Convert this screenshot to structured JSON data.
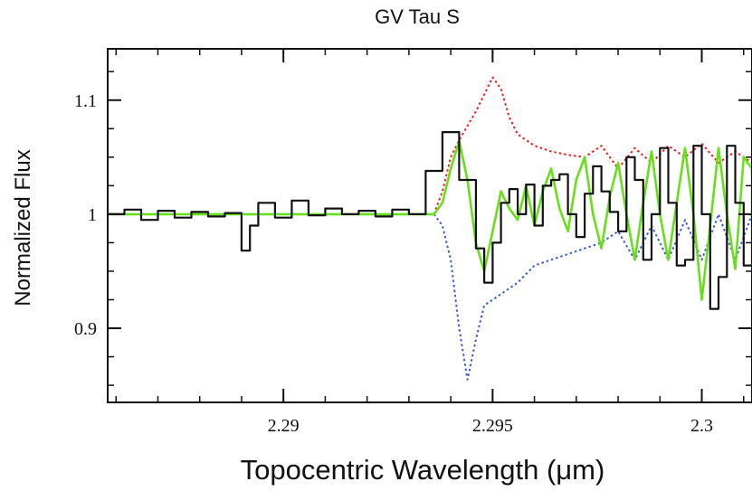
{
  "chart_data": {
    "type": "line",
    "title": "GV Tau S",
    "xlabel": "Topocentric Wavelength (μm)",
    "ylabel": "Normalized Flux",
    "xlim": [
      2.2858,
      2.3012
    ],
    "ylim": [
      0.835,
      1.145
    ],
    "x_ticks": [
      {
        "value": 2.29,
        "label": "2.29"
      },
      {
        "value": 2.295,
        "label": "2.295"
      },
      {
        "value": 2.3,
        "label": "2.3"
      }
    ],
    "y_ticks": [
      {
        "value": 0.9,
        "label": "0.9"
      },
      {
        "value": 1.0,
        "label": "1"
      },
      {
        "value": 1.1,
        "label": "1.1"
      }
    ],
    "x_minor_step": 0.001,
    "y_minor_step": 0.025,
    "grid": false,
    "series": [
      {
        "name": "observed",
        "style": "steps",
        "color": "#111111",
        "x": [
          2.2858,
          2.2862,
          2.2866,
          2.287,
          2.2874,
          2.2878,
          2.2882,
          2.2886,
          2.289,
          2.2892,
          2.2894,
          2.2898,
          2.2902,
          2.2906,
          2.291,
          2.2914,
          2.2918,
          2.2922,
          2.2926,
          2.293,
          2.2934,
          2.2938,
          2.2942,
          2.2946,
          2.2948,
          2.295,
          2.2952,
          2.2954,
          2.2956,
          2.2958,
          2.296,
          2.2962,
          2.2964,
          2.2966,
          2.2968,
          2.297,
          2.2972,
          2.2974,
          2.2976,
          2.2978,
          2.298,
          2.2982,
          2.2984,
          2.2986,
          2.2988,
          2.299,
          2.2992,
          2.2994,
          2.2996,
          2.2998,
          2.3,
          2.3002,
          2.3004,
          2.3006,
          2.3008,
          2.301,
          2.3012
        ],
        "y": [
          1.0,
          1.004,
          0.995,
          1.003,
          0.997,
          1.002,
          0.998,
          1.001,
          0.968,
          0.99,
          1.01,
          0.997,
          1.012,
          0.999,
          1.005,
          1.0,
          1.003,
          0.998,
          1.004,
          1.0,
          1.038,
          1.072,
          1.03,
          0.97,
          0.94,
          0.975,
          1.01,
          1.022,
          1.0,
          1.026,
          0.99,
          1.025,
          1.03,
          1.035,
          1.0,
          0.98,
          1.018,
          1.042,
          1.02,
          1.002,
          0.985,
          1.05,
          1.03,
          0.96,
          1.0,
          1.058,
          1.01,
          0.955,
          0.96,
          1.06,
          1.0,
          0.917,
          0.945,
          1.06,
          1.01,
          0.955,
          1.04
        ]
      },
      {
        "name": "model (green)",
        "style": "line",
        "color": "#66e01a",
        "x": [
          2.2858,
          2.287,
          2.2882,
          2.2894,
          2.2906,
          2.2918,
          2.293,
          2.2936,
          2.2938,
          2.294,
          2.2942,
          2.2944,
          2.2946,
          2.2948,
          2.295,
          2.2952,
          2.2954,
          2.2956,
          2.2958,
          2.296,
          2.2962,
          2.2964,
          2.2966,
          2.2968,
          2.297,
          2.2972,
          2.2974,
          2.2976,
          2.2978,
          2.298,
          2.2982,
          2.2984,
          2.2986,
          2.2988,
          2.299,
          2.2992,
          2.2994,
          2.2996,
          2.2998,
          2.3,
          2.3002,
          2.3004,
          2.3006,
          2.3008,
          2.301,
          2.3012
        ],
        "y": [
          1.0,
          1.0,
          1.0,
          1.0,
          1.0,
          1.0,
          1.0,
          1.0,
          1.01,
          1.04,
          1.064,
          1.03,
          0.975,
          0.95,
          0.985,
          1.02,
          1.005,
          0.995,
          1.025,
          0.99,
          1.02,
          1.04,
          1.005,
          0.985,
          1.03,
          1.05,
          1.0,
          0.97,
          1.015,
          1.045,
          1.0,
          0.96,
          1.01,
          1.055,
          1.0,
          0.96,
          1.01,
          1.058,
          1.0,
          0.925,
          0.99,
          1.058,
          1.0,
          0.952,
          1.05,
          1.04
        ]
      },
      {
        "name": "model (red dotted)",
        "style": "dotted",
        "color": "#e8201e",
        "x": [
          2.2936,
          2.2938,
          2.294,
          2.2942,
          2.2946,
          2.295,
          2.2952,
          2.2954,
          2.2956,
          2.296,
          2.2964,
          2.2968,
          2.2972,
          2.2976,
          2.298,
          2.2984,
          2.2988,
          2.2992,
          2.2996,
          2.3,
          2.3004,
          2.3008,
          2.3012
        ],
        "y": [
          1.0,
          1.02,
          1.05,
          1.065,
          1.09,
          1.12,
          1.11,
          1.085,
          1.07,
          1.06,
          1.055,
          1.052,
          1.05,
          1.06,
          1.04,
          1.058,
          1.045,
          1.06,
          1.05,
          1.062,
          1.045,
          1.055,
          1.045
        ]
      },
      {
        "name": "model (blue dotted)",
        "style": "dotted",
        "color": "#3a5ccf",
        "x": [
          2.2936,
          2.2938,
          2.294,
          2.2942,
          2.2944,
          2.2946,
          2.2948,
          2.2952,
          2.2956,
          2.296,
          2.2964,
          2.2968,
          2.2972,
          2.2976,
          2.298,
          2.2984,
          2.2988,
          2.2992,
          2.2996,
          2.3,
          2.3004,
          2.3008,
          2.3012
        ],
        "y": [
          1.0,
          0.99,
          0.96,
          0.9,
          0.855,
          0.89,
          0.92,
          0.93,
          0.94,
          0.955,
          0.96,
          0.965,
          0.97,
          0.975,
          0.985,
          0.96,
          0.99,
          0.96,
          0.995,
          0.96,
          1.0,
          0.96,
          1.0
        ]
      }
    ]
  }
}
